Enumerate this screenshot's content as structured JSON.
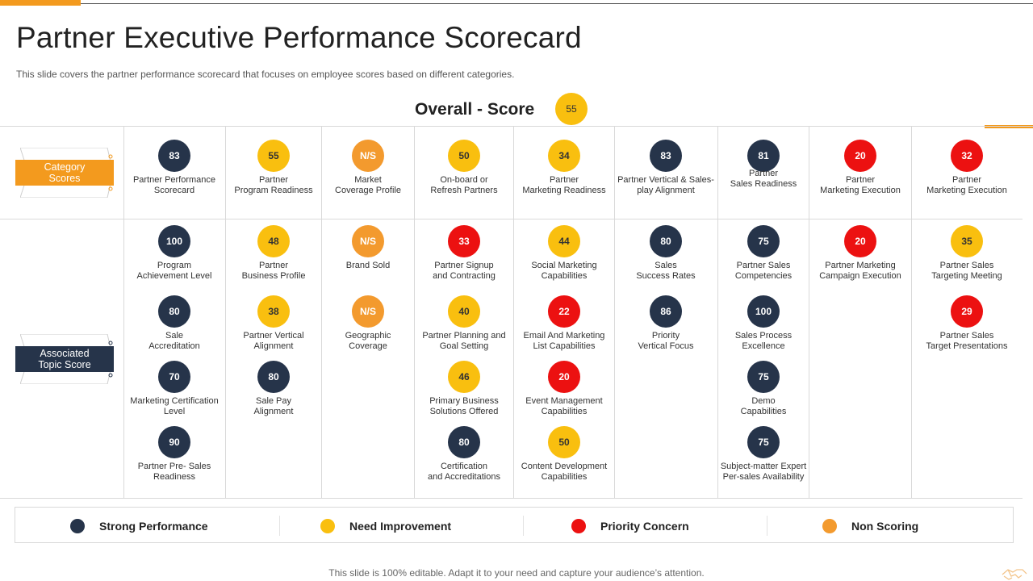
{
  "title": "Partner Executive Performance Scorecard",
  "subtitle": "This slide covers the partner performance  scorecard that focuses on employee scores based on different categories.",
  "overall": {
    "label": "Overall - Score",
    "value": "55",
    "status": "need-improvement"
  },
  "row_labels": {
    "category": "Category\nScores",
    "topic": "Associated\nTopic Score"
  },
  "colors": {
    "strong": "#26344a",
    "improve": "#f9bf0f",
    "priority": "#ec1111",
    "nonscoring": "#f39a2e",
    "accent": "#f39a1e"
  },
  "categories": [
    {
      "value": "83",
      "status": "strong",
      "label": "Partner Performance\nScorecard"
    },
    {
      "value": "55",
      "status": "improve",
      "label": "Partner\nProgram Readiness"
    },
    {
      "value": "N/S",
      "status": "nonscoring",
      "label": "Market\nCoverage Profile"
    },
    {
      "value": "50",
      "status": "improve",
      "label": "On-board or\nRefresh Partners"
    },
    {
      "value": "34",
      "status": "improve",
      "label": "Partner\nMarketing Readiness"
    },
    {
      "value": "83",
      "status": "strong",
      "label": "Partner Vertical & Sales-\nplay Alignment"
    },
    {
      "value": "81",
      "status": "strong",
      "label": "Partner\nSales Readiness"
    },
    {
      "value": "20",
      "status": "priority",
      "label": "Partner\nMarketing Execution"
    },
    {
      "value": "32",
      "status": "priority",
      "label": "Partner\nMarketing Execution"
    }
  ],
  "topics": [
    [
      {
        "value": "100",
        "status": "strong",
        "label": "Program\nAchievement Level"
      },
      {
        "value": "80",
        "status": "strong",
        "label": "Sale\nAccreditation"
      },
      {
        "value": "70",
        "status": "strong",
        "label": "Marketing Certification\nLevel"
      },
      {
        "value": "90",
        "status": "strong",
        "label": "Partner Pre- Sales\nReadiness"
      }
    ],
    [
      {
        "value": "48",
        "status": "improve",
        "label": "Partner\nBusiness Profile"
      },
      {
        "value": "38",
        "status": "improve",
        "label": "Partner Vertical\nAlignment"
      },
      {
        "value": "80",
        "status": "strong",
        "label": "Sale Pay\nAlignment"
      }
    ],
    [
      {
        "value": "N/S",
        "status": "nonscoring",
        "label": "Brand Sold"
      },
      {
        "value": "N/S",
        "status": "nonscoring",
        "label": "Geographic\nCoverage"
      }
    ],
    [
      {
        "value": "33",
        "status": "priority",
        "label": "Partner Signup\nand Contracting"
      },
      {
        "value": "40",
        "status": "improve",
        "label": "Partner Planning  and\nGoal Setting"
      },
      {
        "value": "46",
        "status": "improve",
        "label": "Primary Business\nSolutions Offered"
      },
      {
        "value": "80",
        "status": "strong",
        "label": "Certification\nand Accreditations"
      }
    ],
    [
      {
        "value": "44",
        "status": "improve",
        "label": "Social Marketing\nCapabilities"
      },
      {
        "value": "22",
        "status": "priority",
        "label": "Email  And Marketing\nList Capabilities"
      },
      {
        "value": "20",
        "status": "priority",
        "label": "Event Management\nCapabilities"
      },
      {
        "value": "50",
        "status": "improve",
        "label": "Content Development\nCapabilities"
      }
    ],
    [
      {
        "value": "80",
        "status": "strong",
        "label": "Sales\nSuccess Rates"
      },
      {
        "value": "86",
        "status": "strong",
        "label": "Priority\nVertical Focus"
      }
    ],
    [
      {
        "value": "75",
        "status": "strong",
        "label": "Partner Sales\nCompetencies"
      },
      {
        "value": "100",
        "status": "strong",
        "label": "Sales Process\nExcellence"
      },
      {
        "value": "75",
        "status": "strong",
        "label": "Demo\nCapabilities"
      },
      {
        "value": "75",
        "status": "strong",
        "label": "Subject-matter Expert\nPer-sales Availability"
      }
    ],
    [
      {
        "value": "20",
        "status": "priority",
        "label": "Partner Marketing\nCampaign  Execution"
      }
    ],
    [
      {
        "value": "35",
        "status": "improve",
        "label": "Partner Sales\nTargeting Meeting"
      },
      {
        "value": "29",
        "status": "priority",
        "label": "Partner Sales\nTarget Presentations"
      }
    ]
  ],
  "legend": [
    {
      "status": "strong",
      "label": "Strong Performance"
    },
    {
      "status": "improve",
      "label": "Need Improvement"
    },
    {
      "status": "priority",
      "label": "Priority Concern"
    },
    {
      "status": "nonscoring",
      "label": "Non Scoring"
    }
  ],
  "footer": "This slide is 100% editable. Adapt it to your need and capture your audience’s attention.",
  "corner_icon": "handshake-icon"
}
